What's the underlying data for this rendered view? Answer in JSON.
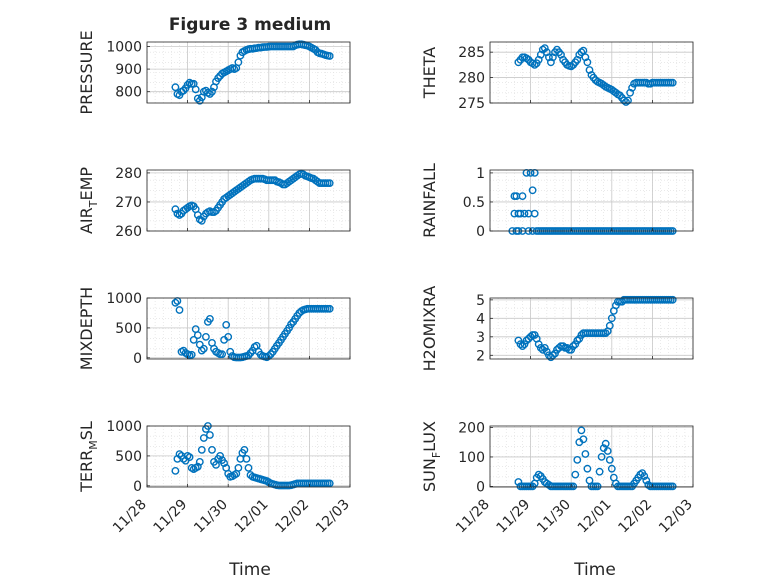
{
  "figure": {
    "title": "Figure 3 medium",
    "xlabel": "Time",
    "xticks": [
      "11/28",
      "11/29",
      "11/30",
      "12/01",
      "12/02",
      "12/03"
    ]
  },
  "colors": {
    "marker": "#0072BD",
    "grid": "#dcdcdc",
    "axis": "#262626"
  },
  "chart_data": [
    {
      "type": "scatter",
      "name": "pressure",
      "ylabel_main": "PRESSURE",
      "ylabel_sub": "",
      "title": "Figure 3 medium",
      "xlim": [
        0,
        5
      ],
      "ylim": [
        750,
        1020
      ],
      "yticks": [
        800,
        900,
        1000
      ],
      "x": [
        0.7,
        0.75,
        0.8,
        0.85,
        0.9,
        0.95,
        1.0,
        1.05,
        1.1,
        1.15,
        1.2,
        1.25,
        1.3,
        1.35,
        1.4,
        1.45,
        1.5,
        1.55,
        1.6,
        1.65,
        1.7,
        1.75,
        1.8,
        1.85,
        1.9,
        1.95,
        2.0,
        2.05,
        2.1,
        2.15,
        2.2,
        2.25,
        2.3,
        2.35,
        2.4,
        2.45,
        2.5,
        2.55,
        2.6,
        2.65,
        2.7,
        2.75,
        2.8,
        2.85,
        2.9,
        2.95,
        3.0,
        3.05,
        3.1,
        3.15,
        3.2,
        3.25,
        3.3,
        3.35,
        3.4,
        3.45,
        3.5,
        3.55,
        3.6,
        3.65,
        3.7,
        3.75,
        3.8,
        3.85,
        3.9,
        3.95,
        4.0,
        4.05,
        4.1,
        4.15,
        4.2,
        4.25,
        4.3,
        4.35,
        4.4,
        4.45,
        4.5
      ],
      "y": [
        820,
        790,
        785,
        800,
        805,
        815,
        830,
        840,
        835,
        835,
        810,
        770,
        760,
        775,
        800,
        805,
        795,
        790,
        800,
        820,
        845,
        860,
        870,
        880,
        885,
        890,
        895,
        900,
        905,
        900,
        905,
        930,
        960,
        975,
        980,
        985,
        988,
        990,
        990,
        992,
        993,
        995,
        995,
        997,
        998,
        998,
        999,
        1000,
        1000,
        1000,
        1000,
        1000,
        1000,
        1000,
        1000,
        1000,
        1000,
        1000,
        1000,
        1005,
        1008,
        1010,
        1010,
        1008,
        1006,
        1004,
        1000,
        995,
        990,
        985,
        975,
        970,
        968,
        965,
        962,
        960,
        958
      ]
    },
    {
      "type": "scatter",
      "name": "theta",
      "ylabel_main": "THETA",
      "ylabel_sub": "",
      "xlim": [
        0,
        5
      ],
      "ylim": [
        275,
        287
      ],
      "yticks": [
        275,
        280,
        285
      ],
      "x": [
        0.7,
        0.75,
        0.8,
        0.85,
        0.9,
        0.95,
        1.0,
        1.05,
        1.1,
        1.15,
        1.2,
        1.25,
        1.3,
        1.35,
        1.4,
        1.45,
        1.5,
        1.55,
        1.6,
        1.65,
        1.7,
        1.75,
        1.8,
        1.85,
        1.9,
        1.95,
        2.0,
        2.05,
        2.1,
        2.15,
        2.2,
        2.25,
        2.3,
        2.35,
        2.4,
        2.45,
        2.5,
        2.55,
        2.6,
        2.65,
        2.7,
        2.75,
        2.8,
        2.85,
        2.9,
        2.95,
        3.0,
        3.05,
        3.1,
        3.15,
        3.2,
        3.25,
        3.3,
        3.35,
        3.4,
        3.45,
        3.5,
        3.55,
        3.6,
        3.65,
        3.7,
        3.75,
        3.8,
        3.85,
        3.9,
        3.95,
        4.0,
        4.05,
        4.1,
        4.15,
        4.2,
        4.25,
        4.3,
        4.35,
        4.4,
        4.45,
        4.5
      ],
      "y": [
        283,
        283.5,
        284,
        284,
        283.8,
        283.5,
        283,
        282.8,
        282.5,
        282.8,
        283.5,
        284.5,
        285.5,
        285.8,
        285,
        284,
        283,
        284,
        285,
        285.5,
        285,
        284.5,
        283.5,
        283,
        282.5,
        282.3,
        282.2,
        282.5,
        283,
        283.5,
        284.5,
        285,
        285.3,
        284,
        283,
        281.5,
        280.5,
        280,
        279.5,
        279.2,
        279,
        278.8,
        278.5,
        278.2,
        278,
        277.8,
        277.6,
        277.3,
        277,
        276.7,
        276.5,
        276,
        275.5,
        275.2,
        275.5,
        277,
        278,
        278.8,
        279,
        279,
        279,
        279,
        279,
        279,
        278.8,
        278.8,
        279,
        279,
        279,
        279,
        279,
        279,
        279,
        279,
        279,
        279,
        279
      ]
    },
    {
      "type": "scatter",
      "name": "air_temp",
      "ylabel_main": "AIR",
      "ylabel_sub": "T",
      "ylabel_tail": "EMP",
      "xlim": [
        0,
        5
      ],
      "ylim": [
        260,
        281
      ],
      "yticks": [
        260,
        270,
        280
      ],
      "x": [
        0.7,
        0.75,
        0.8,
        0.85,
        0.9,
        0.95,
        1.0,
        1.05,
        1.1,
        1.15,
        1.2,
        1.25,
        1.3,
        1.35,
        1.4,
        1.45,
        1.5,
        1.55,
        1.6,
        1.65,
        1.7,
        1.75,
        1.8,
        1.85,
        1.9,
        1.95,
        2.0,
        2.05,
        2.1,
        2.15,
        2.2,
        2.25,
        2.3,
        2.35,
        2.4,
        2.45,
        2.5,
        2.55,
        2.6,
        2.65,
        2.7,
        2.75,
        2.8,
        2.85,
        2.9,
        2.95,
        3.0,
        3.05,
        3.1,
        3.15,
        3.2,
        3.25,
        3.3,
        3.35,
        3.4,
        3.45,
        3.5,
        3.55,
        3.6,
        3.65,
        3.7,
        3.75,
        3.8,
        3.85,
        3.9,
        3.95,
        4.0,
        4.05,
        4.1,
        4.15,
        4.2,
        4.25,
        4.3,
        4.35,
        4.4,
        4.45,
        4.5
      ],
      "y": [
        267.5,
        266,
        265.5,
        266,
        267,
        267.5,
        268,
        268.5,
        268.8,
        268.5,
        267.5,
        265.5,
        264,
        263.5,
        265,
        266,
        266.5,
        266.8,
        266.5,
        266.5,
        267,
        268,
        269,
        270,
        271,
        271.5,
        272,
        272.5,
        273,
        273.5,
        274,
        274.5,
        275,
        275.5,
        276,
        276.5,
        277,
        277.5,
        277.8,
        278,
        278,
        278,
        278,
        278,
        277.8,
        277.5,
        277.5,
        277.5,
        277.5,
        277.5,
        277,
        276.8,
        276.5,
        276,
        276,
        276.5,
        277,
        277.5,
        278,
        278.5,
        279,
        279.5,
        279.8,
        279.5,
        279,
        278.8,
        278.5,
        278.2,
        278,
        277.5,
        277,
        276.5,
        276.5,
        276.5,
        276.5,
        276.5,
        276.5
      ]
    },
    {
      "type": "scatter",
      "name": "rainfall",
      "ylabel_main": "RAINFALL",
      "ylabel_sub": "",
      "xlim": [
        0,
        5
      ],
      "ylim": [
        0,
        1.05
      ],
      "yticks": [
        0,
        0.5,
        1
      ],
      "x": [
        0.55,
        0.6,
        0.6,
        0.65,
        0.65,
        0.7,
        0.7,
        0.75,
        0.8,
        0.8,
        0.85,
        0.9,
        0.95,
        0.95,
        1.0,
        1.05,
        1.05,
        1.1,
        1.1,
        1.15,
        1.2,
        1.25,
        1.3,
        1.35,
        1.4,
        1.45,
        1.5,
        1.55,
        1.6,
        1.65,
        1.7,
        1.75,
        1.8,
        1.85,
        1.9,
        1.95,
        2.0,
        2.05,
        2.1,
        2.15,
        2.2,
        2.25,
        2.3,
        2.35,
        2.4,
        2.45,
        2.5,
        2.55,
        2.6,
        2.65,
        2.7,
        2.75,
        2.8,
        2.85,
        2.9,
        2.95,
        3.0,
        3.05,
        3.1,
        3.15,
        3.2,
        3.25,
        3.3,
        3.35,
        3.4,
        3.45,
        3.5,
        3.55,
        3.6,
        3.65,
        3.7,
        3.75,
        3.8,
        3.85,
        3.9,
        3.95,
        4.0,
        4.05,
        4.1,
        4.15,
        4.2,
        4.25,
        4.3,
        4.35,
        4.4,
        4.45,
        4.5
      ],
      "y": [
        0,
        0.6,
        0.3,
        0,
        0.6,
        0.3,
        0,
        0.3,
        0,
        0.6,
        0.3,
        1,
        0.3,
        0,
        1,
        0.7,
        0,
        1,
        0.3,
        0,
        0,
        0,
        0,
        0,
        0,
        0,
        0,
        0,
        0,
        0,
        0,
        0,
        0,
        0,
        0,
        0,
        0,
        0,
        0,
        0,
        0,
        0,
        0,
        0,
        0,
        0,
        0,
        0,
        0,
        0,
        0,
        0,
        0,
        0,
        0,
        0,
        0,
        0,
        0,
        0,
        0,
        0,
        0,
        0,
        0,
        0,
        0,
        0,
        0,
        0,
        0,
        0,
        0,
        0,
        0,
        0,
        0,
        0,
        0,
        0,
        0,
        0,
        0,
        0,
        0,
        0,
        0
      ]
    },
    {
      "type": "scatter",
      "name": "mixdepth",
      "ylabel_main": "MIXDEPTH",
      "ylabel_sub": "",
      "xlim": [
        0,
        5
      ],
      "ylim": [
        -20,
        1000
      ],
      "yticks": [
        0,
        500,
        1000
      ],
      "x": [
        0.7,
        0.75,
        0.8,
        0.85,
        0.9,
        0.95,
        1.0,
        1.05,
        1.1,
        1.15,
        1.2,
        1.25,
        1.3,
        1.35,
        1.4,
        1.45,
        1.5,
        1.55,
        1.6,
        1.65,
        1.7,
        1.75,
        1.8,
        1.85,
        1.9,
        1.95,
        2.0,
        2.05,
        2.1,
        2.15,
        2.2,
        2.25,
        2.3,
        2.35,
        2.4,
        2.45,
        2.5,
        2.55,
        2.6,
        2.65,
        2.7,
        2.75,
        2.8,
        2.85,
        2.9,
        2.95,
        3.0,
        3.05,
        3.1,
        3.15,
        3.2,
        3.25,
        3.3,
        3.35,
        3.4,
        3.45,
        3.5,
        3.55,
        3.6,
        3.65,
        3.7,
        3.75,
        3.8,
        3.85,
        3.9,
        3.95,
        4.0,
        4.05,
        4.1,
        4.15,
        4.2,
        4.25,
        4.3,
        4.35,
        4.4,
        4.45,
        4.5
      ],
      "y": [
        920,
        950,
        800,
        100,
        120,
        80,
        60,
        40,
        50,
        300,
        480,
        380,
        220,
        120,
        150,
        350,
        600,
        650,
        250,
        150,
        100,
        80,
        60,
        60,
        300,
        550,
        350,
        100,
        30,
        10,
        5,
        5,
        5,
        10,
        20,
        30,
        40,
        80,
        120,
        180,
        200,
        100,
        50,
        30,
        20,
        10,
        30,
        60,
        100,
        150,
        200,
        250,
        300,
        350,
        400,
        450,
        500,
        560,
        600,
        650,
        700,
        750,
        780,
        800,
        810,
        820,
        820,
        820,
        820,
        820,
        820,
        820,
        820,
        820,
        820,
        820,
        820
      ]
    },
    {
      "type": "scatter",
      "name": "h2omixra",
      "ylabel_main": "H2OMIXRA",
      "ylabel_sub": "",
      "xlim": [
        0,
        5
      ],
      "ylim": [
        1.8,
        5.1
      ],
      "yticks": [
        2,
        3,
        4,
        5
      ],
      "x": [
        0.7,
        0.75,
        0.8,
        0.85,
        0.9,
        0.95,
        1.0,
        1.05,
        1.1,
        1.15,
        1.2,
        1.25,
        1.3,
        1.35,
        1.4,
        1.45,
        1.5,
        1.55,
        1.6,
        1.65,
        1.7,
        1.75,
        1.8,
        1.85,
        1.9,
        1.95,
        2.0,
        2.05,
        2.1,
        2.15,
        2.2,
        2.25,
        2.3,
        2.35,
        2.4,
        2.45,
        2.5,
        2.55,
        2.6,
        2.65,
        2.7,
        2.75,
        2.8,
        2.85,
        2.9,
        2.95,
        3.0,
        3.05,
        3.1,
        3.15,
        3.2,
        3.25,
        3.3,
        3.35,
        3.4,
        3.45,
        3.5,
        3.55,
        3.6,
        3.65,
        3.7,
        3.75,
        3.8,
        3.85,
        3.9,
        3.95,
        4.0,
        4.05,
        4.1,
        4.15,
        4.2,
        4.25,
        4.3,
        4.35,
        4.4,
        4.45,
        4.5
      ],
      "y": [
        2.8,
        2.6,
        2.5,
        2.6,
        2.8,
        2.9,
        3.0,
        3.1,
        3.1,
        2.9,
        2.6,
        2.4,
        2.3,
        2.4,
        2.2,
        2.0,
        1.9,
        2.0,
        2.1,
        2.3,
        2.4,
        2.5,
        2.5,
        2.4,
        2.4,
        2.3,
        2.3,
        2.5,
        2.6,
        2.8,
        2.9,
        3.1,
        3.2,
        3.2,
        3.2,
        3.2,
        3.2,
        3.2,
        3.2,
        3.2,
        3.2,
        3.2,
        3.2,
        3.2,
        3.3,
        3.6,
        4.0,
        4.4,
        4.7,
        4.9,
        4.9,
        4.9,
        5.0,
        5.0,
        5.0,
        5.0,
        5.0,
        5.0,
        5.0,
        5.0,
        5.0,
        5.0,
        5.0,
        5.0,
        5.0,
        5.0,
        5.0,
        5.0,
        5.0,
        5.0,
        5.0,
        5.0,
        5.0,
        5.0,
        5.0,
        5.0,
        5.0
      ]
    },
    {
      "type": "scatter",
      "name": "terr_msl",
      "ylabel_main": "TERR",
      "ylabel_sub": "M",
      "ylabel_tail": "SL",
      "xlim": [
        0,
        5
      ],
      "ylim": [
        -20,
        1000
      ],
      "yticks": [
        0,
        500,
        1000
      ],
      "x": [
        0.7,
        0.75,
        0.8,
        0.85,
        0.9,
        0.95,
        1.0,
        1.05,
        1.1,
        1.15,
        1.2,
        1.25,
        1.3,
        1.35,
        1.4,
        1.45,
        1.5,
        1.55,
        1.6,
        1.65,
        1.7,
        1.75,
        1.8,
        1.85,
        1.9,
        1.95,
        2.0,
        2.05,
        2.1,
        2.15,
        2.2,
        2.25,
        2.3,
        2.35,
        2.4,
        2.45,
        2.5,
        2.55,
        2.6,
        2.65,
        2.7,
        2.75,
        2.8,
        2.85,
        2.9,
        2.95,
        3.0,
        3.05,
        3.1,
        3.15,
        3.2,
        3.25,
        3.3,
        3.35,
        3.4,
        3.45,
        3.5,
        3.55,
        3.6,
        3.65,
        3.7,
        3.75,
        3.8,
        3.85,
        3.9,
        3.95,
        4.0,
        4.05,
        4.1,
        4.15,
        4.2,
        4.25,
        4.3,
        4.35,
        4.4,
        4.45,
        4.5
      ],
      "y": [
        250,
        450,
        530,
        500,
        450,
        420,
        500,
        480,
        300,
        280,
        300,
        320,
        400,
        600,
        800,
        950,
        1000,
        850,
        600,
        400,
        350,
        450,
        500,
        430,
        380,
        300,
        200,
        150,
        160,
        180,
        200,
        300,
        450,
        550,
        600,
        450,
        300,
        180,
        150,
        140,
        130,
        120,
        110,
        100,
        90,
        80,
        60,
        40,
        30,
        20,
        10,
        5,
        5,
        5,
        5,
        5,
        5,
        10,
        20,
        30,
        40,
        40,
        40,
        40,
        40,
        40,
        40,
        40,
        40,
        40,
        40,
        40,
        40,
        40,
        40,
        40,
        40
      ]
    },
    {
      "type": "scatter",
      "name": "sun_flux",
      "ylabel_main": "SUN",
      "ylabel_sub": "F",
      "ylabel_tail": "LUX",
      "xlim": [
        0,
        5
      ],
      "ylim": [
        -2,
        205
      ],
      "yticks": [
        0,
        100,
        200
      ],
      "x": [
        0.7,
        0.75,
        0.8,
        0.85,
        0.9,
        0.95,
        1.0,
        1.05,
        1.1,
        1.15,
        1.2,
        1.25,
        1.3,
        1.35,
        1.4,
        1.45,
        1.5,
        1.55,
        1.6,
        1.65,
        1.7,
        1.75,
        1.8,
        1.85,
        1.9,
        1.95,
        2.0,
        2.05,
        2.1,
        2.15,
        2.2,
        2.25,
        2.3,
        2.35,
        2.4,
        2.45,
        2.5,
        2.55,
        2.6,
        2.65,
        2.7,
        2.75,
        2.8,
        2.85,
        2.9,
        2.95,
        3.0,
        3.05,
        3.1,
        3.15,
        3.2,
        3.25,
        3.3,
        3.35,
        3.4,
        3.45,
        3.5,
        3.55,
        3.6,
        3.65,
        3.7,
        3.75,
        3.8,
        3.85,
        3.9,
        3.95,
        4.0,
        4.05,
        4.1,
        4.15,
        4.2,
        4.25,
        4.3,
        4.35,
        4.4,
        4.45,
        4.5
      ],
      "y": [
        15,
        0,
        0,
        0,
        0,
        0,
        0,
        0,
        10,
        30,
        40,
        35,
        25,
        15,
        10,
        5,
        0,
        0,
        0,
        0,
        0,
        0,
        0,
        0,
        0,
        0,
        0,
        0,
        40,
        90,
        150,
        190,
        160,
        110,
        60,
        20,
        0,
        0,
        0,
        0,
        50,
        100,
        130,
        145,
        120,
        90,
        60,
        30,
        10,
        0,
        0,
        0,
        0,
        0,
        0,
        0,
        0,
        10,
        20,
        30,
        40,
        45,
        35,
        20,
        5,
        0,
        0,
        0,
        0,
        0,
        0,
        0,
        0,
        0,
        0,
        0,
        0
      ]
    }
  ]
}
